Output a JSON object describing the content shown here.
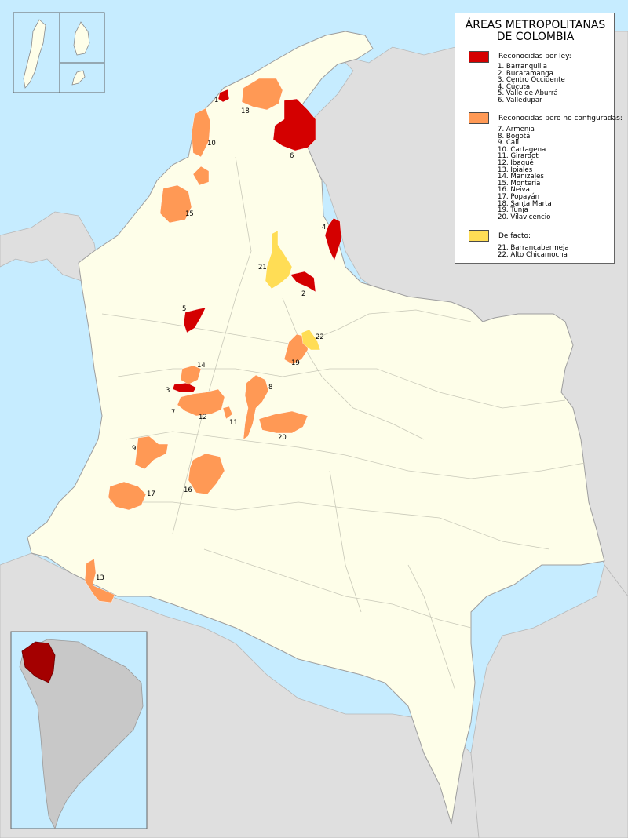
{
  "colors": {
    "water": "#c6ecff",
    "land": "#fefee9",
    "neighbor": "#dfdfdf",
    "by_law": "#d40000",
    "recognized": "#ff9955",
    "de_facto": "#ffdd55",
    "inset_continent": "#c8c8c8",
    "inset_country": "#a40000"
  },
  "legend": {
    "title_line1": "ÁREAS METROPOLITANAS",
    "title_line2": "DE COLOMBIA",
    "groups": [
      {
        "label": "Reconocidas por ley:",
        "color": "#d40000",
        "items": [
          "1. Barranquilla",
          "2. Bucaramanga",
          "3. Centro Occidente",
          "4. Cúcuta",
          "5. Valle de Aburrá",
          "6. Valledupar"
        ]
      },
      {
        "label": "Reconocidas pero no configuradas:",
        "color": "#ff9955",
        "items": [
          "7. Armenia",
          "8. Bogotá",
          "9. Cali",
          "10. Cartagena",
          "11. Girardot",
          "12. Ibagué",
          "13. Ipiales",
          "14. Manizales",
          "15. Montería",
          "16. Neiva",
          "17. Popayán",
          "18. Santa Marta",
          "19. Tunja",
          "20. Vilavicencio"
        ]
      },
      {
        "label": "De facto:",
        "color": "#ffdd55",
        "items": [
          "21. Barrancabermeja",
          "22. Alto Chicamocha"
        ]
      }
    ]
  },
  "areas": [
    {
      "number": "1",
      "name": "Barranquilla",
      "category": "by_law"
    },
    {
      "number": "2",
      "name": "Bucaramanga",
      "category": "by_law"
    },
    {
      "number": "3",
      "name": "Centro Occidente",
      "category": "by_law"
    },
    {
      "number": "4",
      "name": "Cúcuta",
      "category": "by_law"
    },
    {
      "number": "5",
      "name": "Valle de Aburrá",
      "category": "by_law"
    },
    {
      "number": "6",
      "name": "Valledupar",
      "category": "by_law"
    },
    {
      "number": "7",
      "name": "Armenia",
      "category": "recognized"
    },
    {
      "number": "8",
      "name": "Bogotá",
      "category": "recognized"
    },
    {
      "number": "9",
      "name": "Cali",
      "category": "recognized"
    },
    {
      "number": "10",
      "name": "Cartagena",
      "category": "recognized"
    },
    {
      "number": "11",
      "name": "Girardot",
      "category": "recognized"
    },
    {
      "number": "12",
      "name": "Ibagué",
      "category": "recognized"
    },
    {
      "number": "13",
      "name": "Ipiales",
      "category": "recognized"
    },
    {
      "number": "14",
      "name": "Manizales",
      "category": "recognized"
    },
    {
      "number": "15",
      "name": "Montería",
      "category": "recognized"
    },
    {
      "number": "16",
      "name": "Neiva",
      "category": "recognized"
    },
    {
      "number": "17",
      "name": "Popayán",
      "category": "recognized"
    },
    {
      "number": "18",
      "name": "Santa Marta",
      "category": "recognized"
    },
    {
      "number": "19",
      "name": "Tunja",
      "category": "recognized"
    },
    {
      "number": "20",
      "name": "Vilavicencio",
      "category": "recognized"
    },
    {
      "number": "21",
      "name": "Barrancabermeja",
      "category": "de_facto"
    },
    {
      "number": "22",
      "name": "Alto Chicamocha",
      "category": "de_facto"
    }
  ]
}
